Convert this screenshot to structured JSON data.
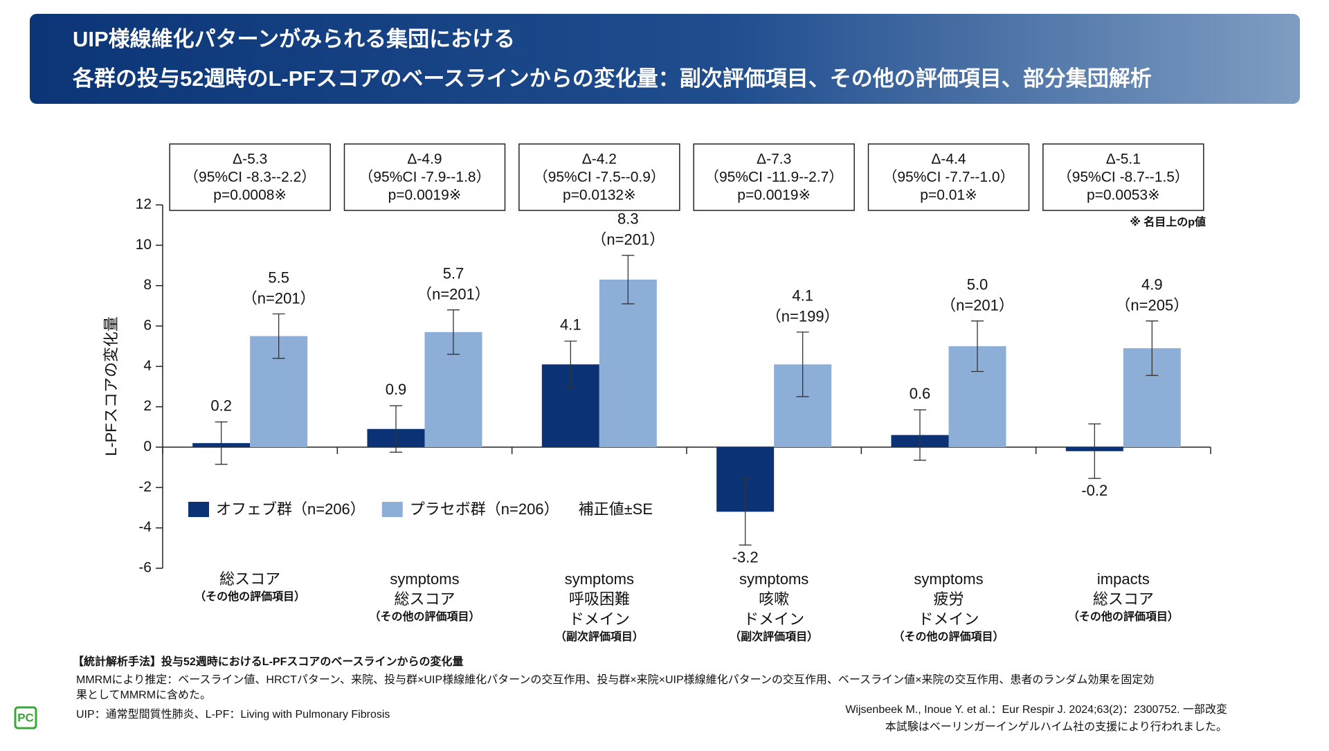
{
  "header": {
    "title_lines": [
      "UIP様線維化パターンがみられる集団における",
      "各群の投与52週時のL-PFスコアのベースラインからの変化量：副次評価項目、その他の評価項目、部分集団解析"
    ]
  },
  "chart_data": {
    "type": "bar",
    "ylabel": "L-PFスコアの変化量",
    "ylim": [
      -6,
      12
    ],
    "yticks": [
      -6,
      -4,
      -2,
      0,
      2,
      4,
      6,
      8,
      10,
      12
    ],
    "categories": [
      [
        "総スコア"
      ],
      [
        "symptoms",
        "総スコア"
      ],
      [
        "symptoms",
        "呼吸困難",
        "ドメイン"
      ],
      [
        "symptoms",
        "咳嗽",
        "ドメイン"
      ],
      [
        "symptoms",
        "疲労",
        "ドメイン"
      ],
      [
        "impacts",
        "総スコア"
      ]
    ],
    "category_notes": [
      "（その他の評価項目）",
      "（その他の評価項目）",
      "（副次評価項目）",
      "（副次評価項目）",
      "（その他の評価項目）",
      "（その他の評価項目）"
    ],
    "series": [
      {
        "name": "オフェブ群（n=206）",
        "color": "#0b3275",
        "values": [
          0.2,
          0.9,
          4.1,
          -3.2,
          0.6,
          -0.2
        ],
        "errors": [
          1.05,
          1.15,
          1.15,
          1.65,
          1.25,
          1.35
        ]
      },
      {
        "name": "プラセボ群（n=206）",
        "color": "#8daed6",
        "values": [
          5.5,
          5.7,
          8.3,
          4.1,
          5.0,
          4.9
        ],
        "value_labels": [
          "5.5",
          "5.7",
          "8.3",
          "4.1",
          "5.0",
          "4.9"
        ],
        "n_labels": [
          "（n=201）",
          "（n=201）",
          "（n=201）",
          "（n=199）",
          "（n=201）",
          "（n=205）"
        ],
        "errors": [
          1.1,
          1.1,
          1.2,
          1.6,
          1.25,
          1.35
        ]
      }
    ],
    "legend_note": "補正値±SE",
    "differences": [
      {
        "delta": "Δ-5.3",
        "ci": "（95%CI -8.3--2.2）",
        "p": "p=0.0008※"
      },
      {
        "delta": "Δ-4.9",
        "ci": "（95%CI -7.9--1.8）",
        "p": "p=0.0019※"
      },
      {
        "delta": "Δ-4.2",
        "ci": "（95%CI -7.5--0.9）",
        "p": "p=0.0132※"
      },
      {
        "delta": "Δ-7.3",
        "ci": "（95%CI -11.9--2.7）",
        "p": "p=0.0019※"
      },
      {
        "delta": "Δ-4.4",
        "ci": "（95%CI -7.7--1.0）",
        "p": "p=0.01※"
      },
      {
        "delta": "Δ-5.1",
        "ci": "（95%CI -8.7--1.5）",
        "p": "p=0.0053※"
      }
    ],
    "p_note": "※ 名目上のp値"
  },
  "footer": {
    "method_title": "【統計解析手法】投与52週時におけるL-PFスコアのベースラインからの変化量",
    "method_lines": [
      "MMRMにより推定：ベースライン値、HRCTパターン、来院、投与群×UIP様線維化パターンの交互作用、投与群×来院×UIP様線維化パターンの交互作用、ベースライン値×来院の交互作用、患者のランダム効果を固定効",
      "果としてMMRMに含めた。"
    ],
    "abbrev": "UIP：通常型間質性肺炎、L-PF：Living with Pulmonary Fibrosis",
    "citation": "Wijsenbeek M., Inoue Y. et al.：Eur Respir J. 2024;63(2)：2300752. 一部改変",
    "support": "本試験はベーリンガーインゲルハイム社の支援により行われました。",
    "logo": "PC"
  }
}
